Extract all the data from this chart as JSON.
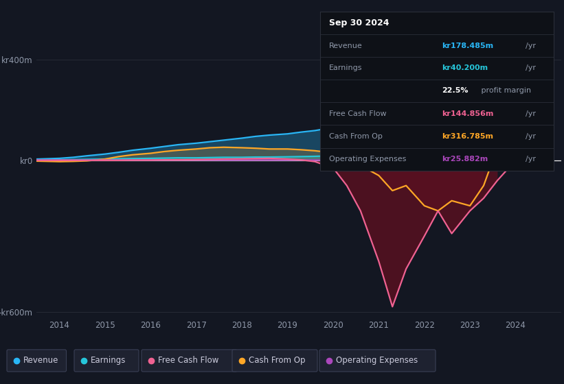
{
  "background_color": "#131722",
  "plot_bg_color": "#131722",
  "ylabel_top": "kr400m",
  "ylabel_zero": "kr0",
  "ylabel_bottom": "-kr600m",
  "colors": {
    "revenue": "#29b6f6",
    "earnings": "#26c6da",
    "free_cash_flow": "#f06292",
    "cash_from_op": "#ffa726",
    "operating_expenses": "#ab47bc"
  },
  "info_box": {
    "date": "Sep 30 2024",
    "revenue_val": "kr178.485m",
    "revenue_color": "#29b6f6",
    "earnings_val": "kr40.200m",
    "earnings_color": "#26c6da",
    "profit_margin": "22.5%",
    "fcf_val": "kr144.856m",
    "fcf_color": "#f06292",
    "cash_op_val": "kr316.785m",
    "cash_op_color": "#ffa726",
    "op_exp_val": "kr25.882m",
    "op_exp_color": "#ab47bc"
  },
  "x": [
    2013.5,
    2014.0,
    2014.3,
    2014.6,
    2015.0,
    2015.3,
    2015.6,
    2016.0,
    2016.3,
    2016.6,
    2017.0,
    2017.3,
    2017.6,
    2018.0,
    2018.3,
    2018.6,
    2019.0,
    2019.3,
    2019.6,
    2020.0,
    2020.3,
    2020.6,
    2021.0,
    2021.3,
    2021.6,
    2022.0,
    2022.3,
    2022.6,
    2023.0,
    2023.3,
    2023.6,
    2024.0,
    2024.3,
    2024.5,
    2024.75
  ],
  "revenue": [
    5,
    8,
    12,
    18,
    25,
    32,
    40,
    48,
    55,
    62,
    68,
    74,
    80,
    88,
    95,
    100,
    105,
    112,
    118,
    130,
    148,
    155,
    148,
    140,
    132,
    140,
    145,
    148,
    152,
    158,
    162,
    165,
    172,
    175,
    178
  ],
  "earnings": [
    1,
    2,
    3,
    4,
    5,
    6,
    7,
    8,
    9,
    10,
    10,
    11,
    12,
    12,
    13,
    13,
    14,
    15,
    16,
    18,
    20,
    22,
    25,
    28,
    32,
    38,
    45,
    52,
    58,
    60,
    62,
    62,
    55,
    48,
    40
  ],
  "free_cash_flow": [
    0,
    0,
    0,
    0,
    0,
    0,
    1,
    1,
    2,
    2,
    3,
    4,
    5,
    6,
    7,
    8,
    5,
    2,
    -5,
    -30,
    -100,
    -200,
    -400,
    -580,
    -430,
    -300,
    -200,
    -290,
    -200,
    -150,
    -80,
    0,
    80,
    120,
    144
  ],
  "cash_from_op": [
    -3,
    -5,
    -4,
    -2,
    5,
    15,
    22,
    28,
    35,
    40,
    45,
    50,
    52,
    50,
    48,
    45,
    45,
    42,
    38,
    30,
    10,
    -20,
    -60,
    -120,
    -100,
    -180,
    -200,
    -160,
    -180,
    -100,
    50,
    200,
    280,
    310,
    316
  ],
  "operating_expenses": [
    1,
    1,
    1,
    1,
    1,
    1,
    1,
    1,
    1,
    1,
    1,
    1,
    1,
    1,
    1,
    1,
    1,
    1,
    1,
    1,
    1,
    1,
    1,
    1,
    1,
    1,
    1,
    1,
    2,
    3,
    5,
    8,
    15,
    20,
    25
  ],
  "xlim": [
    2013.5,
    2025.0
  ],
  "ylim": [
    -620,
    430
  ],
  "yticks": [
    -600,
    0,
    400
  ],
  "xticks": [
    2014,
    2015,
    2016,
    2017,
    2018,
    2019,
    2020,
    2021,
    2022,
    2023,
    2024
  ]
}
